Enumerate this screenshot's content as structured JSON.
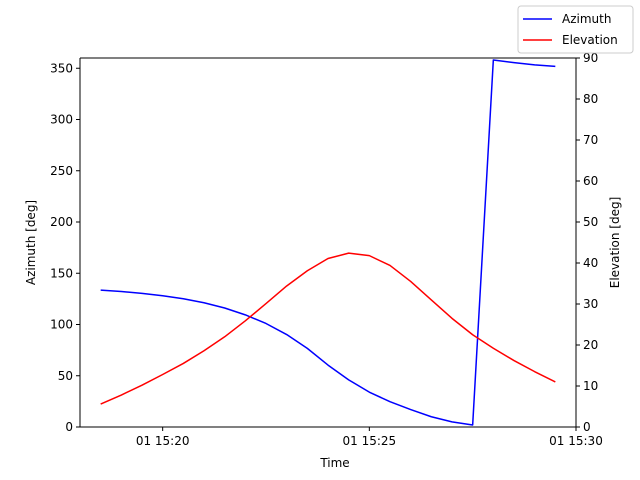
{
  "chart_data": {
    "type": "line",
    "xlabel": "Time",
    "ylabel_left": "Azimuth [deg]",
    "ylabel_right": "Elevation [deg]",
    "xlim": [
      "15:18",
      "15:30"
    ],
    "xticks": [
      {
        "time": "15:20",
        "label": "01 15:20"
      },
      {
        "time": "15:25",
        "label": "01 15:25"
      },
      {
        "time": "15:30",
        "label": "01 15:30"
      }
    ],
    "ylim_left": [
      0,
      360
    ],
    "yticks_left": [
      0,
      50,
      100,
      150,
      200,
      250,
      300,
      350
    ],
    "ylim_right": [
      0,
      90
    ],
    "yticks_right": [
      0,
      10,
      20,
      30,
      40,
      50,
      60,
      70,
      80,
      90
    ],
    "grid": false,
    "legend_position": "top-right (outside plot area)",
    "series": [
      {
        "name": "Azimuth",
        "axis": "left",
        "color": "#0000ff",
        "x": [
          "15:18:30",
          "15:19:00",
          "15:19:30",
          "15:20:00",
          "15:20:30",
          "15:21:00",
          "15:21:30",
          "15:22:00",
          "15:22:30",
          "15:23:00",
          "15:23:30",
          "15:24:00",
          "15:24:30",
          "15:25:00",
          "15:25:30",
          "15:26:00",
          "15:26:30",
          "15:27:00",
          "15:27:30",
          "15:28:00",
          "15:28:30",
          "15:29:00",
          "15:29:30"
        ],
        "values": [
          133.5,
          132.2,
          130.4,
          128.0,
          125.1,
          121.2,
          116.1,
          109.4,
          101.0,
          90.2,
          76.7,
          60.4,
          46.0,
          34.0,
          24.7,
          17.0,
          10.0,
          5.0,
          2.0,
          358.0,
          355.5,
          353.3,
          351.8
        ]
      },
      {
        "name": "Elevation",
        "axis": "right",
        "color": "#ff0000",
        "x": [
          "15:18:30",
          "15:19:00",
          "15:19:30",
          "15:20:00",
          "15:20:30",
          "15:21:00",
          "15:21:30",
          "15:22:00",
          "15:22:30",
          "15:23:00",
          "15:23:30",
          "15:24:00",
          "15:24:30",
          "15:25:00",
          "15:25:30",
          "15:26:00",
          "15:26:30",
          "15:27:00",
          "15:27:30",
          "15:28:00",
          "15:28:30",
          "15:29:00",
          "15:29:30"
        ],
        "values": [
          5.6,
          7.8,
          10.2,
          12.8,
          15.5,
          18.6,
          22.0,
          25.9,
          30.1,
          34.4,
          38.1,
          41.1,
          42.4,
          41.8,
          39.4,
          35.5,
          31.0,
          26.5,
          22.5,
          19.2,
          16.2,
          13.5,
          11.0
        ]
      }
    ]
  },
  "legend": {
    "items": [
      {
        "label": "Azimuth",
        "color": "#0000ff"
      },
      {
        "label": "Elevation",
        "color": "#ff0000"
      }
    ]
  }
}
